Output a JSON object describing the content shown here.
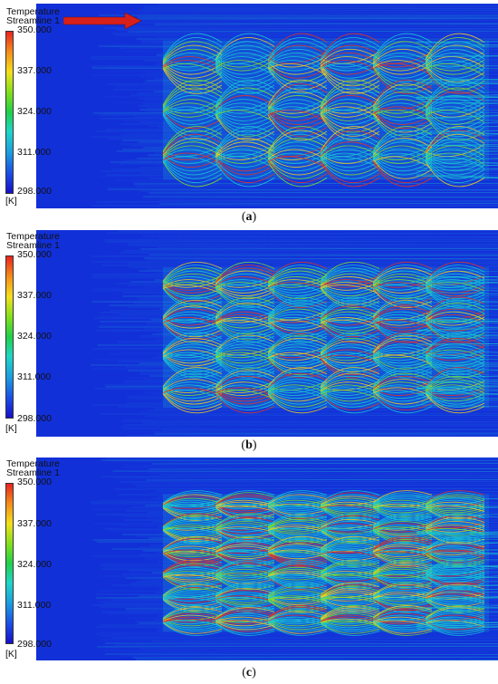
{
  "panels": [
    {
      "legend_title": "Temperature",
      "legend_subtitle": "Streamline 1",
      "ticks": [
        "350.000",
        "337.000",
        "324.000",
        "311.000",
        "298.000"
      ],
      "unit": "[K]",
      "caption_open": "(",
      "caption_letter": "a",
      "caption_close": ")",
      "rows": 3,
      "cols": 6,
      "show_arrow": true
    },
    {
      "legend_title": "Temperature",
      "legend_subtitle": "Streamline 1",
      "ticks": [
        "350.000",
        "337.000",
        "324.000",
        "311.000",
        "298.000"
      ],
      "unit": "[K]",
      "caption_open": "(",
      "caption_letter": "b",
      "caption_close": ")",
      "rows": 4,
      "cols": 6,
      "show_arrow": false
    },
    {
      "legend_title": "Temperature",
      "legend_subtitle": "Streamline 1",
      "ticks": [
        "350.000",
        "337.000",
        "324.000",
        "311.000",
        "298.000"
      ],
      "unit": "[K]",
      "caption_open": "(",
      "caption_letter": "c",
      "caption_close": ")",
      "rows": 6,
      "cols": 6,
      "show_arrow": false
    }
  ],
  "colors": {
    "background_blue": "#1230d8",
    "cold": "#1a6fe0",
    "mid": "#19c8d2",
    "warm": "#7fe02a",
    "hot": "#f2d21b",
    "hottest": "#e8351e",
    "arrow": "#d8201a"
  }
}
